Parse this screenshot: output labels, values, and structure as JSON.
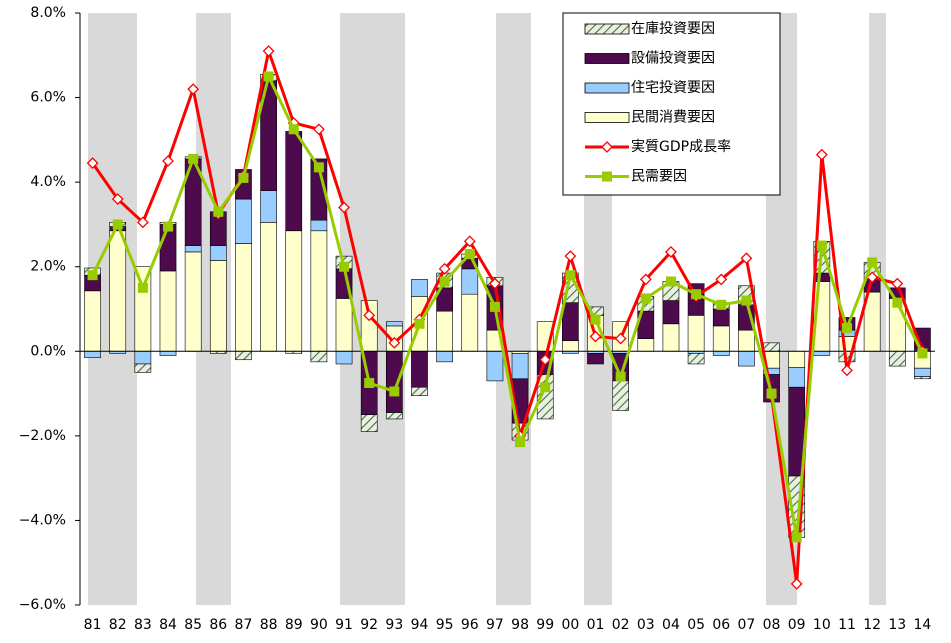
{
  "chart_data": {
    "type": "stacked-bar-line",
    "categories": [
      "81",
      "82",
      "83",
      "84",
      "85",
      "86",
      "87",
      "88",
      "89",
      "90",
      "91",
      "92",
      "93",
      "94",
      "95",
      "96",
      "97",
      "98",
      "99",
      "00",
      "01",
      "02",
      "03",
      "04",
      "05",
      "06",
      "07",
      "08",
      "09",
      "10",
      "11",
      "12",
      "13",
      "14"
    ],
    "ylim": [
      -6,
      8
    ],
    "yticks": [
      {
        "value": -6,
        "label": "−6.0%"
      },
      {
        "value": -4,
        "label": "−4.0%"
      },
      {
        "value": -2,
        "label": "−2.0%"
      },
      {
        "value": 0,
        "label": "0.0%"
      },
      {
        "value": 2,
        "label": "2.0%"
      },
      {
        "value": 4,
        "label": "4.0%"
      },
      {
        "value": 6,
        "label": "6.0%"
      },
      {
        "value": 8,
        "label": "8.0%"
      }
    ],
    "legend": "top-right",
    "series": [
      {
        "name": "在庫投資要因",
        "kind": "bar",
        "pattern": "hatch",
        "color": "#b8cdb0",
        "values": [
          0.17,
          0.1,
          -0.2,
          0.05,
          0.05,
          -0.05,
          -0.2,
          0.15,
          -0.05,
          -0.25,
          0.3,
          -0.4,
          -0.15,
          -0.2,
          0.35,
          0.1,
          0.2,
          -0.4,
          -1.05,
          0.7,
          0.2,
          -0.7,
          0.35,
          0.45,
          -0.25,
          0.15,
          0.45,
          0.2,
          -1.45,
          0.75,
          -0.25,
          0.4,
          -0.35,
          -0.05
        ]
      },
      {
        "name": "設備投資要因",
        "kind": "bar",
        "color": "#4d0a4d",
        "values": [
          0.37,
          0.1,
          0,
          1.1,
          2.05,
          0.8,
          0.7,
          2.6,
          2.35,
          1.45,
          0.7,
          -1.5,
          -1.45,
          -0.85,
          0.55,
          0.25,
          1.05,
          -1.05,
          -0.55,
          0.9,
          -0.25,
          -0.65,
          0.65,
          0.55,
          0.75,
          0.4,
          0.6,
          -0.65,
          -2.1,
          0.2,
          0.3,
          0.3,
          0.25,
          0.55
        ]
      },
      {
        "name": "住宅投資要因",
        "kind": "bar",
        "color": "#99ccff",
        "values": [
          -0.15,
          -0.05,
          -0.3,
          -0.1,
          0.15,
          0.35,
          1.05,
          0.75,
          0,
          0.25,
          -0.3,
          0,
          0.1,
          0.4,
          -0.25,
          0.6,
          -0.7,
          -0.6,
          0,
          -0.05,
          -0.05,
          -0.05,
          0,
          0,
          -0.05,
          -0.1,
          -0.35,
          -0.15,
          -0.47,
          -0.1,
          0.15,
          0,
          0,
          -0.2
        ]
      },
      {
        "name": "民間消費要因",
        "kind": "bar",
        "color": "#ffffcc",
        "values": [
          1.43,
          2.85,
          2.0,
          1.9,
          2.35,
          2.15,
          2.55,
          3.05,
          2.85,
          2.85,
          1.25,
          1.2,
          0.6,
          1.3,
          0.95,
          1.35,
          0.5,
          -0.05,
          0.7,
          0.25,
          0.85,
          0.7,
          0.3,
          0.65,
          0.85,
          0.6,
          0.5,
          -0.4,
          -0.38,
          1.65,
          0.35,
          1.4,
          1.25,
          -0.4
        ]
      },
      {
        "name": "実質GDP成長率",
        "kind": "line",
        "marker": "diamond",
        "color": "#ff0000",
        "values": [
          4.45,
          3.6,
          3.05,
          4.5,
          6.2,
          3.25,
          4.15,
          7.1,
          5.4,
          5.25,
          3.4,
          0.85,
          0.2,
          0.75,
          1.95,
          2.6,
          1.6,
          -2.0,
          -0.2,
          2.25,
          0.35,
          0.3,
          1.7,
          2.35,
          1.3,
          1.7,
          2.2,
          -1.05,
          -5.5,
          4.65,
          -0.45,
          1.75,
          1.6,
          0.0
        ]
      },
      {
        "name": "民需要因",
        "kind": "line",
        "marker": "square",
        "color": "#99cc00",
        "values": [
          1.8,
          3.0,
          1.5,
          2.95,
          4.55,
          3.3,
          4.1,
          6.5,
          5.25,
          4.35,
          2.0,
          -0.75,
          -0.95,
          0.65,
          1.65,
          2.3,
          1.05,
          -2.15,
          -0.85,
          1.8,
          0.75,
          -0.6,
          1.25,
          1.65,
          1.35,
          1.1,
          1.2,
          -1.0,
          -4.4,
          2.5,
          0.55,
          2.1,
          1.15,
          -0.05
        ]
      }
    ]
  }
}
